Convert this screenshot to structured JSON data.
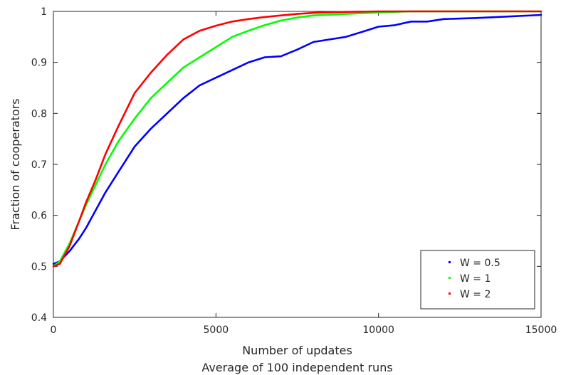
{
  "chart_data": {
    "type": "line",
    "xlabel": "Number of updates",
    "subtitle": "Average of 100 independent runs",
    "ylabel": "Fraction of cooperators",
    "xlim": [
      0,
      15000
    ],
    "ylim": [
      0.4,
      1
    ],
    "xticks": [
      0,
      5000,
      10000,
      15000
    ],
    "xtick_labels": [
      "0",
      "5000",
      "10000",
      "15000"
    ],
    "yticks": [
      0.4,
      0.5,
      0.6,
      0.7,
      0.8,
      0.9,
      1
    ],
    "ytick_labels": [
      "0.4",
      "0.5",
      "0.6",
      "0.7",
      "0.8",
      "0.9",
      "1"
    ],
    "grid": false,
    "legend_position": "bottom-right",
    "series": [
      {
        "name": "W = 0.5",
        "color": "#0000ff",
        "x": [
          0,
          200,
          500,
          800,
          1000,
          1300,
          1600,
          2000,
          2500,
          3000,
          3500,
          4000,
          4500,
          5000,
          5500,
          6000,
          6500,
          7000,
          7500,
          8000,
          8500,
          9000,
          9500,
          10000,
          10500,
          11000,
          11500,
          12000,
          13000,
          14000,
          15000
        ],
        "y": [
          0.505,
          0.51,
          0.53,
          0.555,
          0.575,
          0.61,
          0.645,
          0.685,
          0.735,
          0.77,
          0.8,
          0.83,
          0.855,
          0.87,
          0.885,
          0.9,
          0.91,
          0.912,
          0.925,
          0.94,
          0.945,
          0.95,
          0.96,
          0.97,
          0.973,
          0.98,
          0.98,
          0.985,
          0.987,
          0.99,
          0.993
        ]
      },
      {
        "name": "W = 1",
        "color": "#00ff00",
        "x": [
          0,
          200,
          500,
          800,
          1000,
          1300,
          1600,
          2000,
          2500,
          3000,
          3500,
          4000,
          4500,
          5000,
          5500,
          6000,
          6500,
          7000,
          7500,
          8000,
          9000,
          10000,
          11000,
          12000,
          15000
        ],
        "y": [
          0.5,
          0.51,
          0.545,
          0.59,
          0.62,
          0.66,
          0.7,
          0.745,
          0.79,
          0.83,
          0.86,
          0.89,
          0.91,
          0.93,
          0.95,
          0.962,
          0.973,
          0.982,
          0.988,
          0.992,
          0.995,
          0.998,
          1.0,
          1.0,
          1.0
        ]
      },
      {
        "name": "W = 2",
        "color": "#ff0000",
        "x": [
          0,
          200,
          500,
          800,
          1000,
          1300,
          1600,
          2000,
          2500,
          3000,
          3500,
          4000,
          4500,
          5000,
          5500,
          6000,
          6500,
          7000,
          7500,
          8000,
          9000,
          10000,
          11000,
          15000
        ],
        "y": [
          0.5,
          0.505,
          0.54,
          0.59,
          0.625,
          0.67,
          0.72,
          0.775,
          0.84,
          0.88,
          0.915,
          0.945,
          0.962,
          0.972,
          0.98,
          0.985,
          0.989,
          0.992,
          0.995,
          0.997,
          0.999,
          1.0,
          1.0,
          1.0
        ]
      }
    ]
  }
}
